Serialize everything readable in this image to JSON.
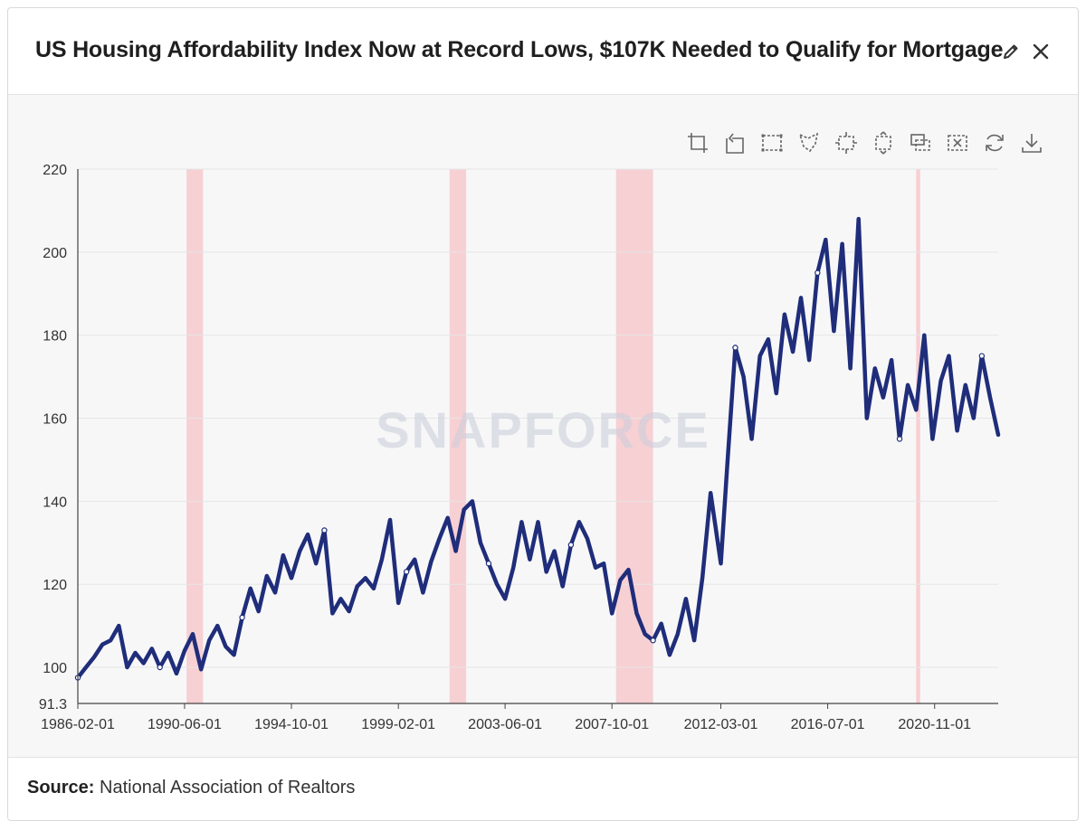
{
  "header": {
    "title": "US Housing Affordability Index Now at Record Lows, $107K Needed to Qualify for Mortgage",
    "edit_icon": "pencil-icon",
    "close_icon": "close-icon"
  },
  "toolbox": {
    "icons": [
      "zoom-icon",
      "zoom-reset-icon",
      "rect-select-icon",
      "lasso-select-icon",
      "keep-select-icon",
      "clear-select-icon",
      "brush-icon",
      "clear-brush-icon",
      "restore-icon",
      "download-icon"
    ]
  },
  "watermark": "SNAPFORCE",
  "footer": {
    "source_label": "Source:",
    "source_text": "National Association of Realtors"
  },
  "colors": {
    "line": "#1f2d7a",
    "recession": "#f7d0d4",
    "grid": "#e6e6e6",
    "axis": "#444444"
  },
  "chart_data": {
    "type": "line",
    "title": "US Housing Affordability Index Now at Record Lows, $107K Needed to Qualify for Mortgage",
    "xlabel": "",
    "ylabel": "",
    "x_range": [
      "1986-02-01",
      "2023-06-01"
    ],
    "ylim": [
      91.3,
      220
    ],
    "yticks": [
      91.3,
      100,
      120,
      140,
      160,
      180,
      200,
      220
    ],
    "xticks": [
      "1986-02-01",
      "1990-06-01",
      "1994-10-01",
      "1999-02-01",
      "2003-06-01",
      "2007-10-01",
      "2012-03-01",
      "2016-07-01",
      "2020-11-01"
    ],
    "grid": true,
    "recessions": [
      [
        "1990-07-01",
        "1991-03-01"
      ],
      [
        "2001-03-01",
        "2001-11-01"
      ],
      [
        "2007-12-01",
        "2009-06-01"
      ],
      [
        "2020-02-01",
        "2020-04-01"
      ]
    ],
    "series": [
      {
        "points": [
          [
            "1986-02-01",
            97.5
          ],
          [
            "1986-06-01",
            100
          ],
          [
            "1986-10-01",
            102.5
          ],
          [
            "1987-02-01",
            105.5
          ],
          [
            "1987-06-01",
            106.5
          ],
          [
            "1987-10-01",
            110
          ],
          [
            "1988-02-01",
            100
          ],
          [
            "1988-06-01",
            103.5
          ],
          [
            "1988-10-01",
            101
          ],
          [
            "1989-02-01",
            104.5
          ],
          [
            "1989-06-01",
            100
          ],
          [
            "1989-10-01",
            103.5
          ],
          [
            "1990-02-01",
            98.5
          ],
          [
            "1990-06-01",
            104
          ],
          [
            "1990-10-01",
            108
          ],
          [
            "1991-02-01",
            99.5
          ],
          [
            "1991-06-01",
            106.5
          ],
          [
            "1991-10-01",
            110
          ],
          [
            "1992-02-01",
            105
          ],
          [
            "1992-06-01",
            103
          ],
          [
            "1992-10-01",
            112
          ],
          [
            "1993-02-01",
            119
          ],
          [
            "1993-06-01",
            113.5
          ],
          [
            "1993-10-01",
            122
          ],
          [
            "1994-02-01",
            118
          ],
          [
            "1994-06-01",
            127
          ],
          [
            "1994-10-01",
            121.5
          ],
          [
            "1995-02-01",
            128
          ],
          [
            "1995-06-01",
            132
          ],
          [
            "1995-10-01",
            125
          ],
          [
            "1996-02-01",
            133
          ],
          [
            "1996-06-01",
            113
          ],
          [
            "1996-10-01",
            116.5
          ],
          [
            "1997-02-01",
            113.5
          ],
          [
            "1997-06-01",
            119.5
          ],
          [
            "1997-10-01",
            121.5
          ],
          [
            "1998-02-01",
            119
          ],
          [
            "1998-06-01",
            126
          ],
          [
            "1998-10-01",
            135.5
          ],
          [
            "1999-02-01",
            115.5
          ],
          [
            "1999-06-01",
            123
          ],
          [
            "1999-10-01",
            126
          ],
          [
            "2000-02-01",
            118
          ],
          [
            "2000-06-01",
            125.5
          ],
          [
            "2000-10-01",
            131
          ],
          [
            "2001-02-01",
            136
          ],
          [
            "2001-06-01",
            128
          ],
          [
            "2001-10-01",
            138
          ],
          [
            "2002-02-01",
            140
          ],
          [
            "2002-06-01",
            130
          ],
          [
            "2002-10-01",
            125
          ],
          [
            "2003-02-01",
            120
          ],
          [
            "2003-06-01",
            116.5
          ],
          [
            "2003-10-01",
            124
          ],
          [
            "2004-02-01",
            135
          ],
          [
            "2004-06-01",
            126
          ],
          [
            "2004-10-01",
            135
          ],
          [
            "2005-02-01",
            123
          ],
          [
            "2005-06-01",
            128
          ],
          [
            "2005-10-01",
            119.5
          ],
          [
            "2006-02-01",
            129.5
          ],
          [
            "2006-06-01",
            135
          ],
          [
            "2006-10-01",
            131
          ],
          [
            "2007-02-01",
            124
          ],
          [
            "2007-06-01",
            125
          ],
          [
            "2007-10-01",
            113
          ],
          [
            "2008-02-01",
            121
          ],
          [
            "2008-06-01",
            123.5
          ],
          [
            "2008-10-01",
            113
          ],
          [
            "2009-02-01",
            108
          ],
          [
            "2009-06-01",
            106.5
          ],
          [
            "2009-10-01",
            110.5
          ],
          [
            "2010-02-01",
            103
          ],
          [
            "2010-06-01",
            108
          ],
          [
            "2010-10-01",
            116.5
          ],
          [
            "2011-02-01",
            106.5
          ],
          [
            "2011-06-01",
            121.5
          ],
          [
            "2011-10-01",
            142
          ],
          [
            "2012-03-01",
            125
          ],
          [
            "2012-06-01",
            148
          ],
          [
            "2012-10-01",
            177
          ],
          [
            "2013-02-01",
            170
          ],
          [
            "2013-06-01",
            155
          ],
          [
            "2013-10-01",
            175
          ],
          [
            "2014-02-01",
            179
          ],
          [
            "2014-06-01",
            166
          ],
          [
            "2014-10-01",
            185
          ],
          [
            "2015-02-01",
            176
          ],
          [
            "2015-06-01",
            189
          ],
          [
            "2015-10-01",
            174
          ],
          [
            "2016-02-01",
            195
          ],
          [
            "2016-06-01",
            203
          ],
          [
            "2016-10-01",
            181
          ],
          [
            "2017-02-01",
            202
          ],
          [
            "2017-06-01",
            172
          ],
          [
            "2017-10-01",
            208
          ],
          [
            "2018-02-01",
            160
          ],
          [
            "2018-06-01",
            172
          ],
          [
            "2018-10-01",
            165
          ],
          [
            "2019-02-01",
            174
          ],
          [
            "2019-06-01",
            155
          ],
          [
            "2019-10-01",
            168
          ],
          [
            "2020-02-01",
            162
          ],
          [
            "2020-06-01",
            180
          ],
          [
            "2020-10-01",
            155
          ],
          [
            "2021-02-01",
            169
          ],
          [
            "2021-06-01",
            175
          ],
          [
            "2021-10-01",
            157
          ],
          [
            "2022-02-01",
            168
          ],
          [
            "2022-06-01",
            160
          ],
          [
            "2022-10-01",
            175
          ],
          [
            "2023-02-01",
            165
          ],
          [
            "2023-06-01",
            156
          ]
        ]
      }
    ]
  }
}
